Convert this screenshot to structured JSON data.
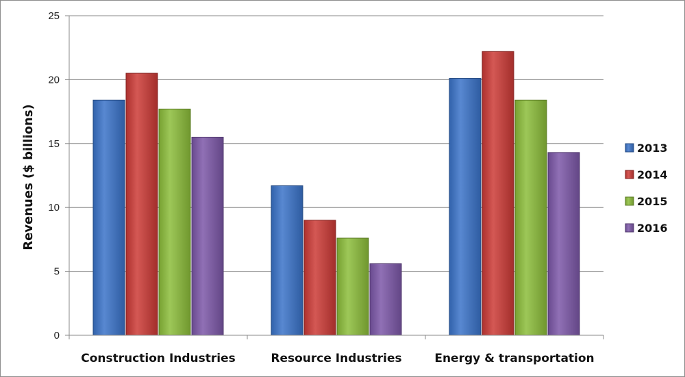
{
  "chart_data": {
    "type": "bar",
    "title": "",
    "xlabel": "",
    "ylabel": "Revenues ($ billions)",
    "ylim": [
      0,
      25
    ],
    "yticks": [
      "0",
      "5",
      "10",
      "15",
      "20",
      "25"
    ],
    "grid": true,
    "legend_position": "right",
    "categories": [
      "Construction Industries",
      "Resource Industries",
      "Energy & transportation"
    ],
    "series": [
      {
        "name": "2013",
        "color": "#3a73c9",
        "values": [
          18.4,
          11.7,
          20.1
        ]
      },
      {
        "name": "2014",
        "color": "#cc3a36",
        "values": [
          20.5,
          9.0,
          22.2
        ]
      },
      {
        "name": "2015",
        "color": "#8cbd3a",
        "values": [
          17.7,
          7.6,
          18.4
        ]
      },
      {
        "name": "2016",
        "color": "#7c57a8",
        "values": [
          15.5,
          5.6,
          14.3
        ]
      }
    ]
  }
}
